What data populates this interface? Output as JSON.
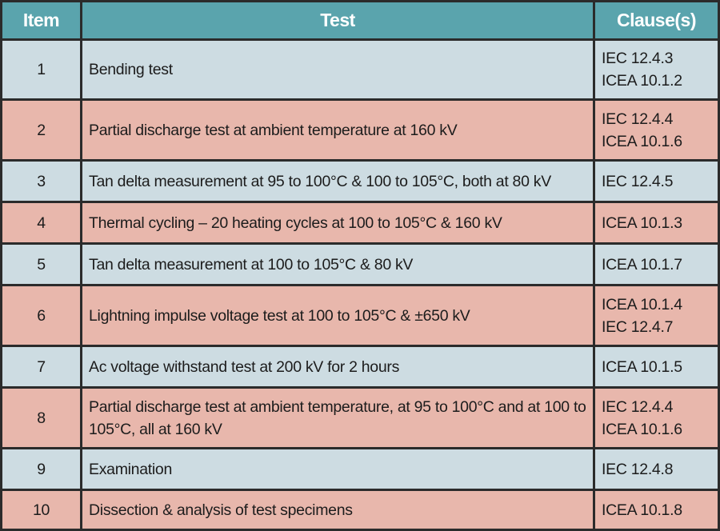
{
  "header": {
    "item": "Item",
    "test": "Test",
    "clauses": "Clause(s)"
  },
  "colors": {
    "header_bg": "#5aa4ad",
    "row_blue": "#cddce2",
    "row_pink": "#e8b7ac",
    "grid": "#2b2b2b"
  },
  "rows": [
    {
      "item": "1",
      "test": "Bending test",
      "clauses": [
        "IEC 12.4.3",
        "ICEA 10.1.2"
      ]
    },
    {
      "item": "2",
      "test": "Partial discharge test at ambient temperature at 160 kV",
      "clauses": [
        "IEC 12.4.4",
        "ICEA 10.1.6"
      ]
    },
    {
      "item": "3",
      "test": "Tan delta measurement at 95 to 100°C & 100 to 105°C, both at 80 kV",
      "clauses": [
        "IEC 12.4.5"
      ]
    },
    {
      "item": "4",
      "test": "Thermal cycling – 20 heating cycles at 100 to 105°C & 160 kV",
      "clauses": [
        "ICEA 10.1.3"
      ]
    },
    {
      "item": "5",
      "test": "Tan delta measurement at 100 to 105°C & 80 kV",
      "clauses": [
        "ICEA 10.1.7"
      ]
    },
    {
      "item": "6",
      "test": "Lightning impulse voltage test at 100 to 105°C & ±650 kV",
      "clauses": [
        "ICEA 10.1.4",
        "IEC 12.4.7"
      ]
    },
    {
      "item": "7",
      "test": "Ac voltage withstand test at 200 kV for 2 hours",
      "clauses": [
        "ICEA 10.1.5"
      ]
    },
    {
      "item": "8",
      "test": "Partial discharge test at ambient temperature, at 95 to 100°C and at 100 to 105°C, all at 160 kV",
      "clauses": [
        "IEC 12.4.4",
        "ICEA 10.1.6"
      ]
    },
    {
      "item": "9",
      "test": "Examination",
      "clauses": [
        "IEC 12.4.8"
      ]
    },
    {
      "item": "10",
      "test": "Dissection & analysis of test specimens",
      "clauses": [
        "ICEA 10.1.8"
      ]
    }
  ]
}
